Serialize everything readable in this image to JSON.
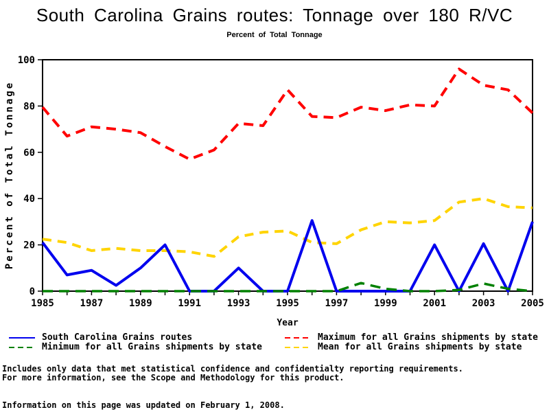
{
  "title": "South Carolina Grains routes: Tonnage over 180 R/VC",
  "subtitle": "Percent of Total Tonnage",
  "chart_data": {
    "type": "line",
    "title": "South Carolina Grains routes: Tonnage over 180 R/VC",
    "subtitle": "Percent of Total Tonnage",
    "xlabel": "Year",
    "ylabel": "Percent of Total Tonnage",
    "xlim": [
      1985,
      2005
    ],
    "ylim": [
      0,
      100
    ],
    "grid": false,
    "legend_position": "bottom",
    "x_tick_labels": [
      "1985",
      "1987",
      "1989",
      "1991",
      "1993",
      "1995",
      "1997",
      "1999",
      "2001",
      "2003",
      "2005"
    ],
    "y_tick_labels": [
      "0",
      "20",
      "40",
      "60",
      "80",
      "100"
    ],
    "years": [
      1985,
      1986,
      1987,
      1988,
      1989,
      1990,
      1991,
      1992,
      1993,
      1994,
      1995,
      1996,
      1997,
      1998,
      1999,
      2000,
      2001,
      2002,
      2003,
      2004,
      2005
    ],
    "series": [
      {
        "key": "max",
        "name": "Maximum for all Grains shipments by state",
        "color": "#FF0000",
        "style": "dashed",
        "values": [
          79.5,
          67,
          71,
          70,
          68.5,
          62.5,
          57,
          61,
          72.5,
          71.5,
          87,
          75.5,
          75,
          79.5,
          78,
          80.5,
          80,
          96,
          89,
          87,
          77
        ]
      },
      {
        "key": "mean",
        "name": "Mean for all Grains shipments by state",
        "color": "#FFD400",
        "style": "dashed",
        "values": [
          22.5,
          21,
          17.5,
          18.5,
          17.5,
          17.5,
          17,
          15,
          23.5,
          25.5,
          26,
          21,
          20.5,
          26.5,
          30,
          29.5,
          30.5,
          38.5,
          40,
          36.5,
          36
        ]
      },
      {
        "key": "sc",
        "name": "South Carolina Grains routes",
        "color": "#0000EE",
        "style": "solid",
        "values": [
          21,
          7,
          9,
          2.5,
          10,
          20,
          0,
          0,
          10,
          0,
          0,
          30.5,
          0,
          0,
          0,
          0,
          20,
          0,
          20.5,
          0,
          30
        ]
      },
      {
        "key": "min",
        "name": "Minimum for all Grains shipments by state",
        "color": "#008000",
        "style": "dashed",
        "values": [
          0,
          0,
          0,
          0,
          0,
          0,
          0,
          0,
          0,
          0,
          0,
          0,
          0,
          3.5,
          1,
          0,
          0,
          0.5,
          3.3,
          1,
          0
        ]
      }
    ]
  },
  "legend": {
    "items": [
      {
        "label": "South Carolina Grains routes",
        "color": "#0000EE",
        "style": "solid"
      },
      {
        "label": "Minimum for all Grains shipments by state",
        "color": "#008000",
        "style": "dashed"
      },
      {
        "label": "Maximum for all Grains shipments by state",
        "color": "#FF0000",
        "style": "dashed"
      },
      {
        "label": "Mean for all Grains shipments by state",
        "color": "#FFD400",
        "style": "dashed"
      }
    ]
  },
  "footnotes": {
    "line1": "Includes only data that met statistical confidence and confidentialty reporting requirements.",
    "line2": "For more information, see the Scope and Methodology for this product.",
    "line3": "Information on this page was updated on February 1, 2008."
  }
}
